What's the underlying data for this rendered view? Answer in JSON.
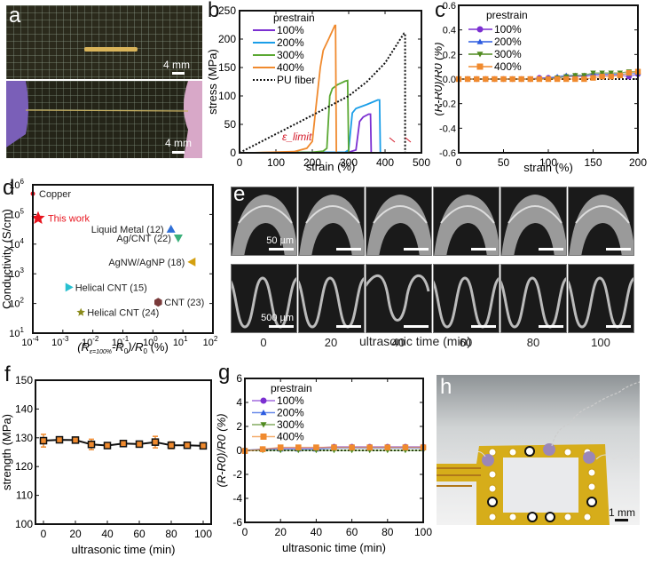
{
  "panels": {
    "a": {
      "label": "a",
      "top_scale": "4 mm",
      "bottom_scale": "4 mm"
    },
    "e": {
      "label": "e",
      "scale_top": "50 µm",
      "scale_bottom": "500 µm",
      "time_labels": [
        "0",
        "20",
        "40",
        "60",
        "80",
        "100"
      ],
      "xlabel": "ultrasonic time (min)"
    },
    "h": {
      "label": "h",
      "scale": "1 mm"
    }
  },
  "colors": {
    "p100": "#7b2fd1",
    "p200": "#1a9ee8",
    "p300": "#5aa832",
    "p400": "#f08a2e",
    "pu": "#111111",
    "limit": "#d41c2c",
    "bar_f": "#f08a2e"
  },
  "chart_data": [
    {
      "id": "b",
      "label": "b",
      "type": "line",
      "title": "",
      "xlabel": "strain (%)",
      "ylabel": "stress (MPa)",
      "xlim": [
        0,
        500
      ],
      "ylim": [
        0,
        250
      ],
      "xticks": [
        0,
        100,
        200,
        300,
        400,
        500
      ],
      "yticks": [
        0,
        50,
        100,
        150,
        200,
        250
      ],
      "legend_title": "prestrain",
      "legend_position": "top-left",
      "annotation": "ε_limit",
      "series": [
        {
          "name": "100%",
          "color": "#7b2fd1",
          "points": [
            [
              0,
              0
            ],
            [
              300,
              1
            ],
            [
              320,
              5
            ],
            [
              330,
              55
            ],
            [
              340,
              63
            ],
            [
              355,
              68
            ],
            [
              360,
              68
            ],
            [
              362,
              0
            ]
          ]
        },
        {
          "name": "200%",
          "color": "#1a9ee8",
          "points": [
            [
              0,
              0
            ],
            [
              290,
              1
            ],
            [
              300,
              5
            ],
            [
              310,
              70
            ],
            [
              320,
              78
            ],
            [
              350,
              85
            ],
            [
              380,
              93
            ],
            [
              385,
              93
            ],
            [
              387,
              0
            ]
          ]
        },
        {
          "name": "300%",
          "color": "#5aa832",
          "points": [
            [
              0,
              0
            ],
            [
              200,
              1
            ],
            [
              230,
              3
            ],
            [
              240,
              8
            ],
            [
              248,
              100
            ],
            [
              255,
              113
            ],
            [
              270,
              120
            ],
            [
              290,
              126
            ],
            [
              297,
              127
            ],
            [
              300,
              0
            ]
          ]
        },
        {
          "name": "400%",
          "color": "#f08a2e",
          "points": [
            [
              30,
              0
            ],
            [
              150,
              2
            ],
            [
              185,
              8
            ],
            [
              200,
              20
            ],
            [
              210,
              80
            ],
            [
              222,
              150
            ],
            [
              230,
              180
            ],
            [
              245,
              200
            ],
            [
              262,
              224
            ],
            [
              264,
              224
            ],
            [
              266,
              0
            ]
          ]
        },
        {
          "name": "PU fiber",
          "color": "#111111",
          "dashed": true,
          "points": [
            [
              0,
              0
            ],
            [
              100,
              33
            ],
            [
              200,
              66
            ],
            [
              300,
              100
            ],
            [
              350,
              125
            ],
            [
              400,
              158
            ],
            [
              452,
              210
            ],
            [
              455,
              210
            ],
            [
              455,
              0
            ]
          ]
        }
      ]
    },
    {
      "id": "c",
      "label": "c",
      "type": "line",
      "xlabel": "strain (%)",
      "ylabel": "(R-R0)/R0 (%)",
      "xlim": [
        0,
        200
      ],
      "ylim": [
        -0.6,
        0.6
      ],
      "xticks": [
        0,
        50,
        100,
        150,
        200
      ],
      "yticks": [
        -0.6,
        -0.4,
        -0.2,
        0.0,
        0.2,
        0.4,
        0.6
      ],
      "ytick_labels": [
        "-0.6",
        "-0.4",
        "-0.2",
        "0.0",
        "0.2",
        "0.4",
        "0.6"
      ],
      "legend_title": "prestrain",
      "legend_position": "top-left",
      "x": [
        0,
        10,
        20,
        30,
        40,
        50,
        60,
        70,
        80,
        90,
        100,
        110,
        120,
        130,
        140,
        150,
        160,
        170,
        180,
        190,
        200
      ],
      "series": [
        {
          "name": "100%",
          "color": "#7b2fd1",
          "marker": "circle",
          "values": [
            0,
            0,
            0,
            0,
            0,
            0,
            0,
            0,
            0,
            0.01,
            0.01,
            0.01,
            0.02,
            0.02,
            0.02,
            0.03,
            0.03,
            0.03,
            0.03,
            0.02,
            0.04
          ]
        },
        {
          "name": "200%",
          "color": "#2c5be0",
          "marker": "triangle-up",
          "values": [
            0,
            0,
            0,
            0,
            0,
            0,
            0,
            0,
            0,
            0,
            0.01,
            0.02,
            0.03,
            0.03,
            0.03,
            0.04,
            0.04,
            0.04,
            0.04,
            0.04,
            0.05
          ]
        },
        {
          "name": "300%",
          "color": "#4f8a1f",
          "marker": "triangle-down",
          "values": [
            0,
            0,
            0,
            0,
            0,
            0,
            0,
            0,
            0,
            0,
            0,
            0.01,
            0.02,
            0.03,
            0.03,
            0.05,
            0.05,
            0.05,
            0.05,
            0.06,
            0.06
          ]
        },
        {
          "name": "400%",
          "color": "#f08a2e",
          "marker": "square",
          "values": [
            0,
            0,
            0,
            0,
            0,
            0,
            0,
            0,
            0,
            0,
            0,
            0,
            0,
            0,
            0,
            0.01,
            0.02,
            0.02,
            0.03,
            0.05,
            0.06
          ]
        }
      ]
    },
    {
      "id": "d",
      "label": "d",
      "type": "scatter",
      "xlabel": "(R_ε=100% - R0)/R0 (%)",
      "ylabel": "Conductivity (S/cm)",
      "xscale": "log",
      "yscale": "log",
      "xlim": [
        0.0001,
        100
      ],
      "ylim": [
        10,
        1000000
      ],
      "xticks": [
        "10-4",
        "10-3",
        "10-2",
        "10-1",
        "100",
        "101",
        "102"
      ],
      "yticks": [
        "101",
        "102",
        "103",
        "104",
        "105",
        "106"
      ],
      "points": [
        {
          "name": "Copper",
          "x": 0.0001,
          "y": 500000,
          "marker": "circle-small",
          "color": "#e8141e",
          "label_side": "right"
        },
        {
          "name": "This work",
          "x": 0.00015,
          "y": 75000,
          "marker": "star",
          "color": "#e8141e",
          "label_side": "right",
          "label_color": "#e8141e"
        },
        {
          "name": "Liquid Metal  (12)",
          "x": 4,
          "y": 32000,
          "marker": "triangle-up",
          "color": "#2f6fd6",
          "label_side": "left"
        },
        {
          "name": "Ag/CNT (22)",
          "x": 7,
          "y": 16000,
          "marker": "triangle-down",
          "color": "#3ab07a",
          "label_side": "left"
        },
        {
          "name": "AgNW/AgNP (18)",
          "x": 20,
          "y": 2500,
          "marker": "triangle-left",
          "color": "#d4a010",
          "label_side": "left"
        },
        {
          "name": "Helical CNT (15)",
          "x": 0.0016,
          "y": 350,
          "marker": "triangle-right",
          "color": "#28c0d0",
          "label_side": "right"
        },
        {
          "name": "CNT (23)",
          "x": 1.5,
          "y": 110,
          "marker": "hexagon",
          "color": "#7a3a3a",
          "label_side": "right"
        },
        {
          "name": "Helical CNT (24)",
          "x": 0.004,
          "y": 50,
          "marker": "star-small",
          "color": "#8a8a1a",
          "label_side": "right"
        }
      ]
    },
    {
      "id": "f",
      "label": "f",
      "type": "line",
      "xlabel": "ultrasonic time (min)",
      "ylabel": "strength (MPa)",
      "xlim": [
        -5,
        105
      ],
      "ylim": [
        100,
        150
      ],
      "xticks": [
        0,
        20,
        40,
        60,
        80,
        100
      ],
      "yticks": [
        100,
        110,
        120,
        130,
        140,
        150
      ],
      "x": [
        0,
        10,
        20,
        30,
        40,
        50,
        60,
        70,
        80,
        90,
        100
      ],
      "values": [
        129.0,
        129.3,
        129.2,
        127.7,
        127.3,
        128.0,
        127.8,
        128.5,
        127.4,
        127.4,
        127.2
      ],
      "errors": [
        2.2,
        0.6,
        0.6,
        1.8,
        0.4,
        1.0,
        0.8,
        2.0,
        1.2,
        0.8,
        1.0
      ]
    },
    {
      "id": "g",
      "label": "g",
      "type": "line",
      "xlabel": "ultrasonic time (min)",
      "ylabel": "(R-R0)/R0 (%)",
      "xlim": [
        0,
        100
      ],
      "ylim": [
        -6,
        6
      ],
      "xticks": [
        0,
        20,
        40,
        60,
        80,
        100
      ],
      "yticks": [
        -6,
        -4,
        -2,
        0,
        2,
        4,
        6
      ],
      "legend_title": "prestrain",
      "legend_position": "top-left",
      "x": [
        0,
        10,
        20,
        30,
        40,
        50,
        60,
        70,
        80,
        90,
        100
      ],
      "series": [
        {
          "name": "100%",
          "color": "#7b2fd1",
          "marker": "circle",
          "values": [
            0,
            0.1,
            0.2,
            0.2,
            0.2,
            0.3,
            0.3,
            0.3,
            0.3,
            0.3,
            0.3
          ]
        },
        {
          "name": "200%",
          "color": "#2c5be0",
          "marker": "triangle-up",
          "values": [
            0,
            0.1,
            0.1,
            0.1,
            0.1,
            0.2,
            0.2,
            0.2,
            0.2,
            0.2,
            0.2
          ]
        },
        {
          "name": "300%",
          "color": "#4f8a1f",
          "marker": "triangle-down",
          "values": [
            0,
            0,
            0,
            0,
            0,
            0,
            0,
            0,
            0,
            0,
            0
          ]
        },
        {
          "name": "400%",
          "color": "#f08a2e",
          "marker": "square",
          "values": [
            -0.05,
            0.1,
            0.25,
            0.25,
            0.25,
            0.25,
            0.25,
            0.25,
            0.25,
            0.25,
            0.25
          ]
        }
      ]
    }
  ]
}
